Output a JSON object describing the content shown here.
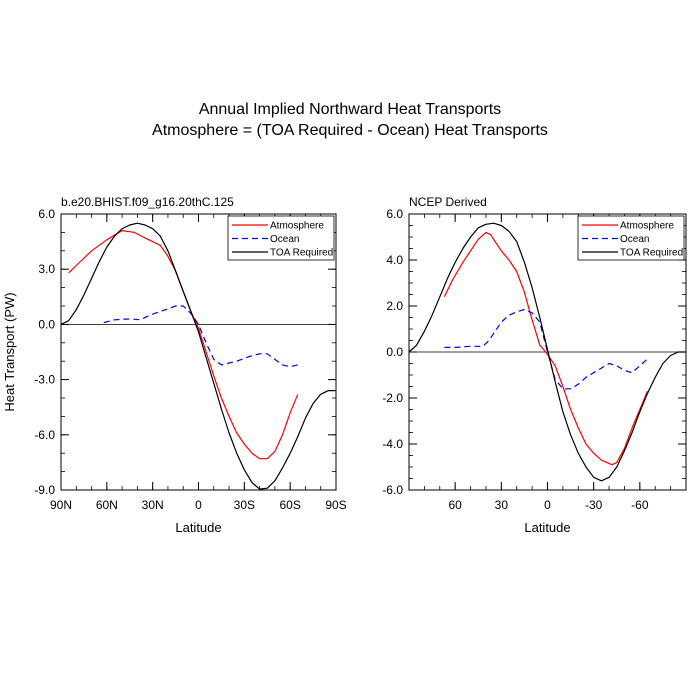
{
  "figure": {
    "title_line1": "Annual Implied Northward Heat Transports",
    "title_line2": "Atmosphere = (TOA Required - Ocean) Heat Transports"
  },
  "colors": {
    "atmosphere": "#ff0000",
    "ocean": "#0000ff",
    "toa": "#000000"
  },
  "chart_data": [
    {
      "type": "line",
      "title": "b.e20.BHIST.f09_g16.20thC.125",
      "xlabel": "Latitude",
      "ylabel": "Heat Transport (PW)",
      "xlim": [
        90,
        -90
      ],
      "ylim": [
        -9,
        6
      ],
      "xticks": [
        90,
        60,
        30,
        0,
        -30,
        -60,
        -90
      ],
      "xtick_labels": [
        "90N",
        "60N",
        "30N",
        "0",
        "30S",
        "60S",
        "90S"
      ],
      "xminor": 10,
      "yticks": [
        6,
        3,
        0,
        -3,
        -6,
        -9
      ],
      "ytick_labels": [
        "6.0",
        "3.0",
        "0.0",
        "-3.0",
        "-6.0",
        "-9.0"
      ],
      "yminor": 1,
      "zero_line": true,
      "legend": [
        "Atmosphere",
        "Ocean",
        "TOA Required"
      ],
      "legend_position": "top-right",
      "series": [
        {
          "name": "Atmosphere",
          "style": "solid",
          "color": "red",
          "x": [
            85,
            80,
            70,
            60,
            50,
            42,
            35,
            25,
            20,
            15,
            10,
            5,
            0,
            -5,
            -10,
            -15,
            -20,
            -25,
            -30,
            -35,
            -40,
            -45,
            -50,
            -55,
            -60,
            -65
          ],
          "y": [
            2.8,
            3.2,
            4.0,
            4.6,
            5.1,
            5.0,
            4.7,
            4.3,
            3.7,
            2.9,
            1.8,
            0.7,
            -0.2,
            -1.5,
            -2.8,
            -4.0,
            -5.0,
            -5.9,
            -6.5,
            -7.0,
            -7.3,
            -7.3,
            -6.9,
            -6.0,
            -4.8,
            -3.8
          ]
        },
        {
          "name": "Ocean",
          "style": "dashed",
          "color": "blue",
          "x": [
            62,
            55,
            45,
            38,
            32,
            25,
            20,
            15,
            10,
            5,
            0,
            -5,
            -10,
            -15,
            -20,
            -25,
            -30,
            -35,
            -40,
            -45,
            -50,
            -55,
            -60,
            -65
          ],
          "y": [
            0.1,
            0.25,
            0.3,
            0.25,
            0.5,
            0.7,
            0.85,
            1.0,
            1.0,
            0.6,
            0.0,
            -1.0,
            -1.9,
            -2.2,
            -2.1,
            -2.0,
            -1.85,
            -1.7,
            -1.6,
            -1.6,
            -1.9,
            -2.2,
            -2.3,
            -2.2
          ]
        },
        {
          "name": "TOA Required",
          "style": "solid",
          "color": "black",
          "x": [
            90,
            85,
            80,
            75,
            70,
            65,
            60,
            55,
            50,
            45,
            40,
            35,
            30,
            25,
            20,
            15,
            10,
            5,
            0,
            -5,
            -10,
            -15,
            -20,
            -25,
            -30,
            -35,
            -40,
            -45,
            -50,
            -55,
            -60,
            -65,
            -70,
            -75,
            -80,
            -85,
            -90
          ],
          "y": [
            0.0,
            0.2,
            0.8,
            1.6,
            2.5,
            3.4,
            4.2,
            4.8,
            5.2,
            5.4,
            5.5,
            5.4,
            5.2,
            4.8,
            4.0,
            2.9,
            1.8,
            0.7,
            -0.4,
            -1.8,
            -3.2,
            -4.6,
            -5.9,
            -7.0,
            -7.9,
            -8.6,
            -8.95,
            -8.9,
            -8.5,
            -7.8,
            -7.0,
            -6.1,
            -5.1,
            -4.3,
            -3.8,
            -3.6,
            -3.6
          ]
        }
      ]
    },
    {
      "type": "line",
      "title": "NCEP Derived",
      "xlabel": "Latitude",
      "ylabel": "",
      "xlim": [
        90,
        -90
      ],
      "ylim": [
        -6,
        6
      ],
      "xticks": [
        60,
        30,
        0,
        -30,
        -60
      ],
      "xtick_labels": [
        "60",
        "30",
        "0",
        "-30",
        "-60"
      ],
      "xminor": 10,
      "yticks": [
        6,
        4,
        2,
        0,
        -2,
        -4,
        -6
      ],
      "ytick_labels": [
        "6.0",
        "4.0",
        "2.0",
        "0.0",
        "-2.0",
        "-4.0",
        "-6.0"
      ],
      "yminor": 0.5,
      "zero_line": true,
      "legend": [
        "Atmosphere",
        "Ocean",
        "TOA Required"
      ],
      "legend_position": "top-right",
      "series": [
        {
          "name": "Atmosphere",
          "style": "solid",
          "color": "red",
          "x": [
            67,
            62,
            55,
            50,
            45,
            40,
            37,
            35,
            30,
            25,
            20,
            15,
            10,
            5,
            0,
            -5,
            -10,
            -15,
            -20,
            -25,
            -30,
            -35,
            -40,
            -42,
            -45,
            -50,
            -55,
            -60,
            -65
          ],
          "y": [
            2.4,
            3.1,
            3.9,
            4.4,
            4.9,
            5.2,
            5.1,
            4.9,
            4.4,
            4.0,
            3.5,
            2.6,
            1.4,
            0.3,
            -0.1,
            -0.6,
            -1.5,
            -2.5,
            -3.3,
            -4.0,
            -4.4,
            -4.7,
            -4.85,
            -4.9,
            -4.8,
            -4.2,
            -3.3,
            -2.5,
            -1.7
          ]
        },
        {
          "name": "Ocean",
          "style": "dashed",
          "color": "blue",
          "x": [
            67,
            60,
            50,
            42,
            38,
            35,
            30,
            25,
            20,
            15,
            10,
            5,
            0,
            -5,
            -10,
            -15,
            -20,
            -25,
            -30,
            -35,
            -40,
            -45,
            -50,
            -55,
            -60,
            -65
          ],
          "y": [
            0.2,
            0.2,
            0.25,
            0.25,
            0.5,
            0.8,
            1.3,
            1.6,
            1.75,
            1.85,
            1.7,
            1.3,
            0.0,
            -1.2,
            -1.6,
            -1.6,
            -1.4,
            -1.1,
            -0.9,
            -0.7,
            -0.5,
            -0.6,
            -0.8,
            -0.9,
            -0.6,
            -0.3
          ]
        },
        {
          "name": "TOA Required",
          "style": "solid",
          "color": "black",
          "x": [
            90,
            85,
            80,
            75,
            70,
            65,
            60,
            55,
            50,
            45,
            40,
            35,
            30,
            25,
            20,
            15,
            10,
            5,
            0,
            -5,
            -10,
            -15,
            -20,
            -25,
            -30,
            -35,
            -40,
            -45,
            -50,
            -55,
            -60,
            -65,
            -70,
            -75,
            -80,
            -85,
            -90
          ],
          "y": [
            0.0,
            0.3,
            0.9,
            1.6,
            2.4,
            3.2,
            3.9,
            4.5,
            5.0,
            5.4,
            5.55,
            5.6,
            5.5,
            5.25,
            4.8,
            3.9,
            2.8,
            1.5,
            0.1,
            -1.3,
            -2.6,
            -3.6,
            -4.4,
            -5.0,
            -5.45,
            -5.6,
            -5.45,
            -5.0,
            -4.3,
            -3.5,
            -2.6,
            -1.8,
            -1.1,
            -0.5,
            -0.15,
            0.0,
            0.0
          ]
        }
      ]
    }
  ]
}
